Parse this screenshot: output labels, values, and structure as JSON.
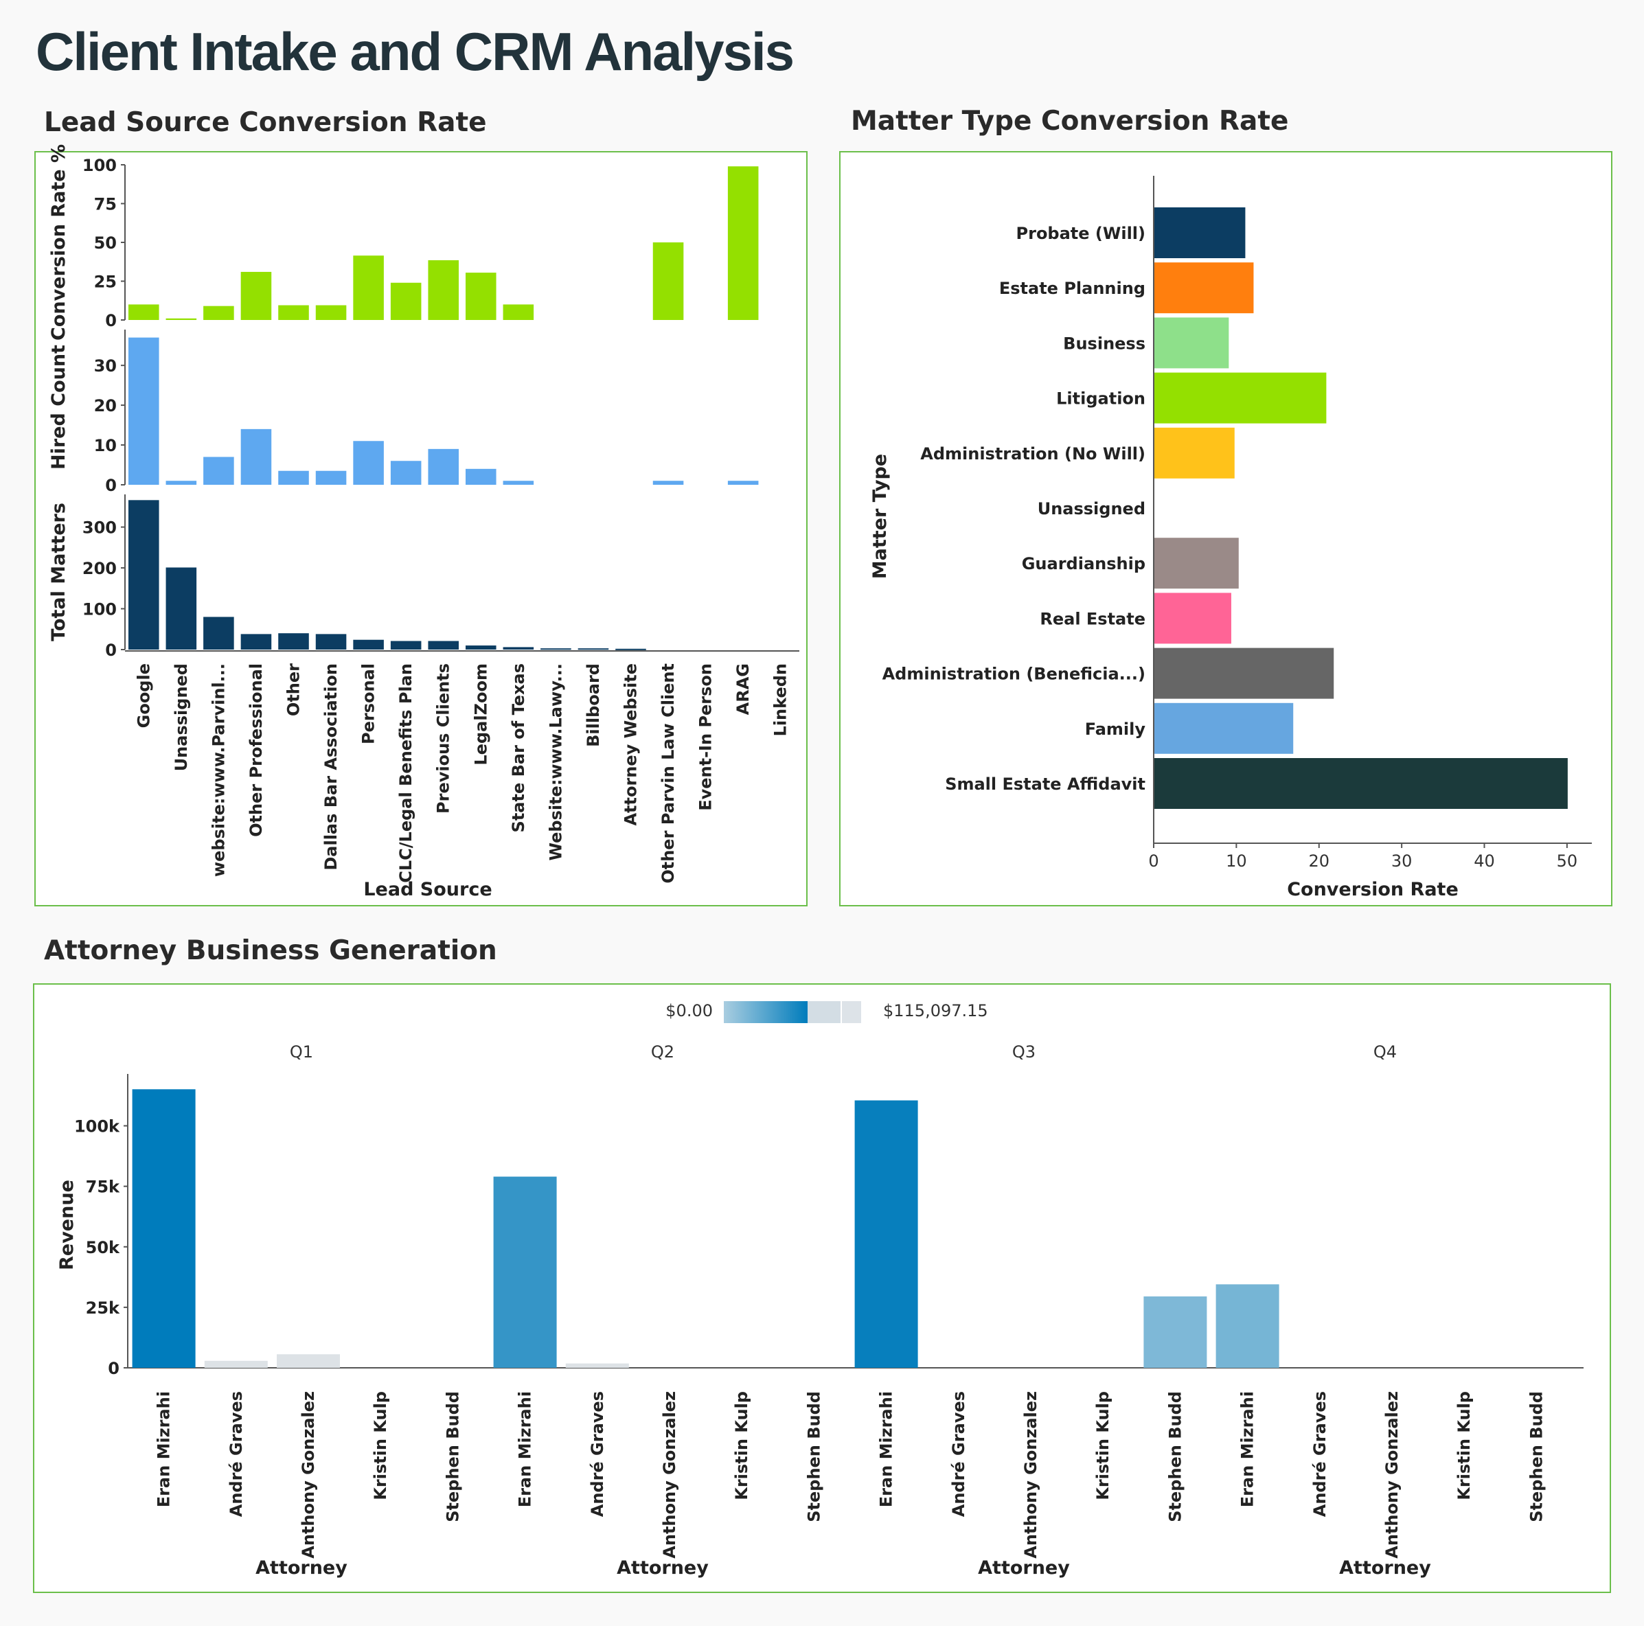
{
  "dashboard": {
    "title": "Client Intake and CRM Analysis"
  },
  "sections": {
    "lead_source": "Lead Source Conversion Rate",
    "matter_type": "Matter Type Conversion Rate",
    "attorney": "Attorney Business Generation"
  },
  "colors": {
    "panel_border": "#6bbf4a",
    "conversion_bar": "#94e000",
    "hired_bar": "#5ea8f0",
    "matters_bar": "#0c3d62",
    "revenue_scale_low": "#a9cde0",
    "revenue_scale_high": "#007cbc"
  },
  "chart_data": [
    {
      "type": "bar",
      "id": "lead-source",
      "title": "Lead Source Conversion Rate",
      "xlabel": "Lead Source",
      "categories": [
        "Google",
        "Unassigned",
        "website:www.Parvinl...",
        "Other Professional",
        "Other",
        "Dallas Bar Association",
        "Personal",
        "CLC/Legal Benefits Plan",
        "Previous Clients",
        "LegalZoom",
        "State Bar of Texas",
        "Website:www.Lawy...",
        "Billboard",
        "Attorney Website",
        "Other Parvin Law Client",
        "Event-In Person",
        "ARAG",
        "Linkedn"
      ],
      "panels": [
        {
          "name": "Conversion Rate %",
          "ylabel": "Conversion Rate %",
          "ylim": [
            0,
            100
          ],
          "ticks": [
            0,
            25,
            50,
            75,
            100
          ],
          "color": "#94e000",
          "values": [
            10,
            1,
            9,
            31,
            9.5,
            9.5,
            41.5,
            24,
            38.5,
            30.5,
            10,
            0,
            0,
            0,
            50,
            0,
            99,
            0
          ]
        },
        {
          "name": "Hired Count",
          "ylabel": "Hired Count",
          "ylim": [
            0,
            39
          ],
          "ticks": [
            0,
            10,
            20,
            30
          ],
          "color": "#5ea8f0",
          "values": [
            37,
            1,
            7,
            14,
            3.5,
            3.5,
            11,
            6,
            9,
            4,
            1,
            0,
            0,
            0,
            1,
            0,
            1,
            0
          ]
        },
        {
          "name": "Total Matters",
          "ylabel": "Total Matters",
          "ylim": [
            0,
            380
          ],
          "ticks": [
            0,
            100,
            200,
            300
          ],
          "color": "#0c3d62",
          "values": [
            366,
            201,
            80,
            38,
            40,
            38,
            24,
            21,
            21,
            10,
            6,
            3,
            3,
            2,
            0,
            0,
            0,
            0
          ]
        }
      ]
    },
    {
      "type": "bar",
      "id": "matter-type",
      "orientation": "horizontal",
      "title": "Matter Type Conversion Rate",
      "xlabel": "Conversion Rate",
      "ylabel": "Matter Type",
      "xlim": [
        0,
        53
      ],
      "xticks": [
        0,
        10,
        20,
        30,
        40,
        50
      ],
      "categories": [
        "Probate (Will)",
        "Estate Planning",
        "Business",
        "Litigation",
        "Administration (No Will)",
        "Unassigned",
        "Guardianship",
        "Real Estate",
        "Administration (Beneficia...)",
        "Family",
        "Small Estate Affidavit"
      ],
      "values": [
        11,
        12,
        9,
        20.8,
        9.7,
        0,
        10.2,
        9.3,
        21.7,
        16.8,
        50
      ],
      "colors": [
        "#0c3d62",
        "#ff7f0e",
        "#8ee08a",
        "#94e000",
        "#ffc21a",
        "#cccccc",
        "#9a8a88",
        "#ff6496",
        "#666666",
        "#66a6e0",
        "#1b3a3b"
      ]
    },
    {
      "type": "bar",
      "id": "attorney-revenue",
      "title": "Attorney Business Generation",
      "ylabel": "Revenue",
      "xlabel": "Attorney",
      "ylim": [
        0,
        122000
      ],
      "yticks": [
        0,
        25000,
        50000,
        75000,
        100000
      ],
      "ytick_labels": [
        "0",
        "25k",
        "50k",
        "75k",
        "100k"
      ],
      "color_scale": {
        "min_label": "$0.00",
        "max_label": "$115,097.15"
      },
      "facets": [
        {
          "label": "Q1",
          "categories": [
            "Eran Mizrahi",
            "André Graves",
            "Anthony Gonzalez",
            "Kristin Kulp",
            "Stephen Budd"
          ],
          "values": [
            115097.15,
            2900,
            5600,
            0,
            0
          ]
        },
        {
          "label": "Q2",
          "categories": [
            "Eran Mizrahi",
            "André Graves",
            "Anthony Gonzalez",
            "Kristin Kulp",
            "Stephen Budd"
          ],
          "values": [
            79000,
            1800,
            0,
            0,
            0
          ]
        },
        {
          "label": "Q3",
          "categories": [
            "Eran Mizrahi",
            "André Graves",
            "Anthony Gonzalez",
            "Kristin Kulp",
            "Stephen Budd"
          ],
          "values": [
            110500,
            0,
            0,
            0,
            29500
          ]
        },
        {
          "label": "Q4",
          "categories": [
            "Eran Mizrahi",
            "André Graves",
            "Anthony Gonzalez",
            "Kristin Kulp",
            "Stephen Budd"
          ],
          "values": [
            34500,
            0,
            0,
            0,
            0
          ]
        }
      ]
    }
  ]
}
